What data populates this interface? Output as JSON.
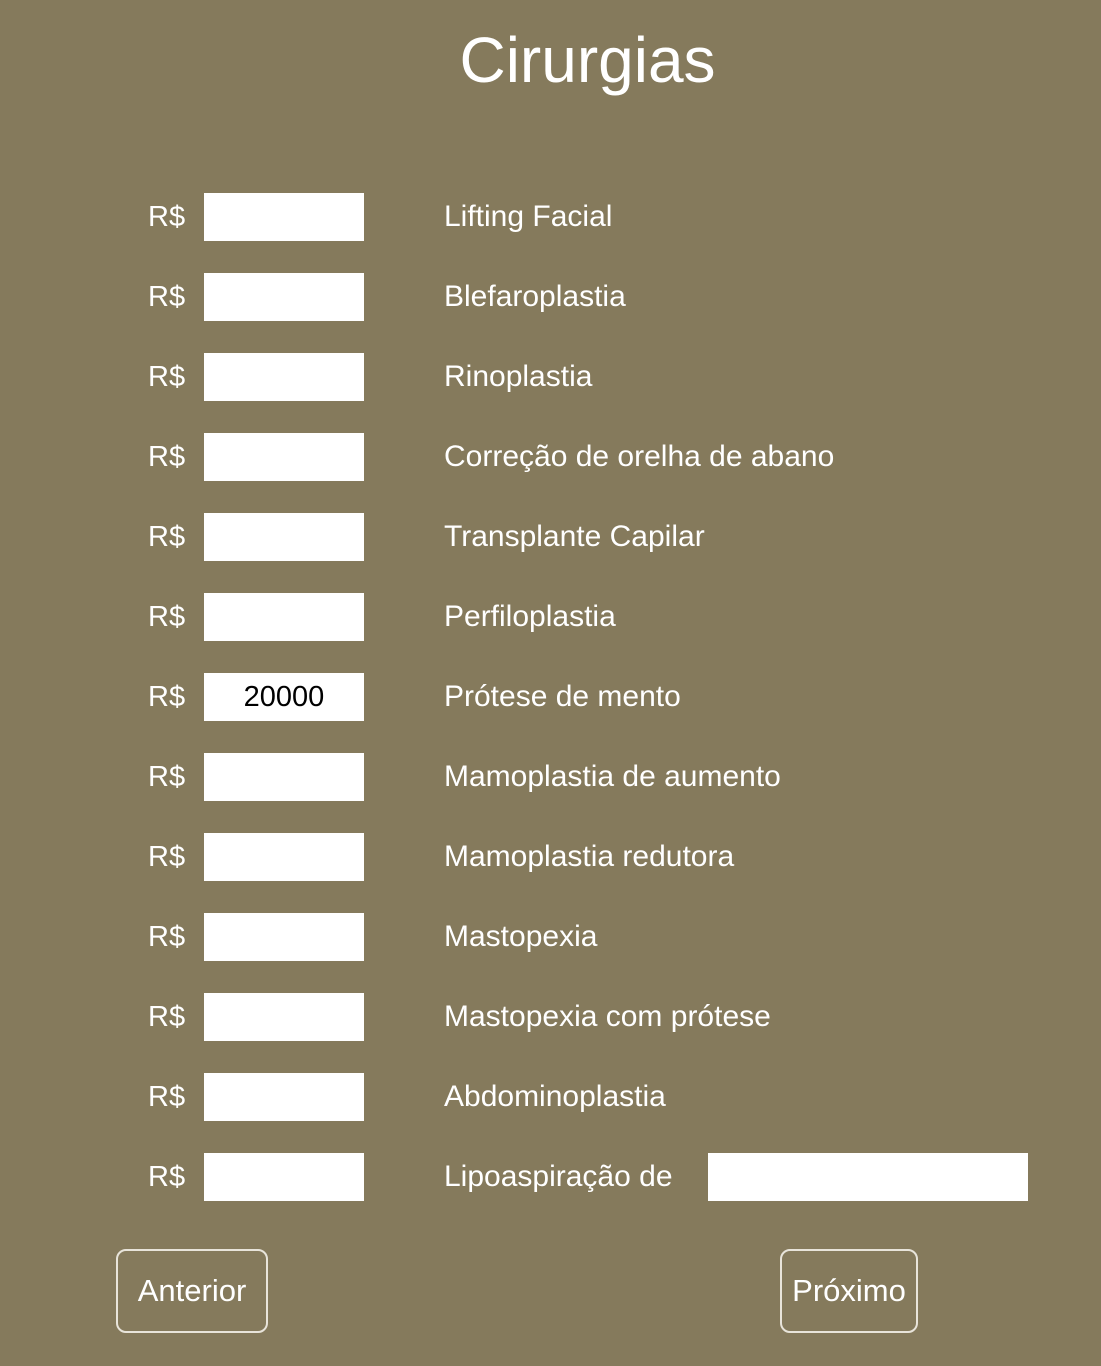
{
  "page": {
    "title": "Cirurgias",
    "currency_symbol": "R$",
    "text_color": "#ffffff",
    "background_color": "#857a5c"
  },
  "surgeries": [
    {
      "label": "Lifting Facial",
      "value": ""
    },
    {
      "label": "Blefaroplastia",
      "value": ""
    },
    {
      "label": "Rinoplastia",
      "value": ""
    },
    {
      "label": "Correção de orelha de abano",
      "value": ""
    },
    {
      "label": "Transplante Capilar",
      "value": ""
    },
    {
      "label": "Perfiloplastia",
      "value": ""
    },
    {
      "label": "Prótese de mento",
      "value": "20000"
    },
    {
      "label": "Mamoplastia de aumento",
      "value": ""
    },
    {
      "label": "Mamoplastia redutora",
      "value": ""
    },
    {
      "label": "Mastopexia",
      "value": ""
    },
    {
      "label": "Mastopexia com prótese",
      "value": ""
    },
    {
      "label": "Abdominoplastia",
      "value": ""
    },
    {
      "label": "Lipoaspiração de",
      "value": "",
      "extra_value": ""
    }
  ],
  "navigation": {
    "previous_label": "Anterior",
    "next_label": "Próximo"
  }
}
